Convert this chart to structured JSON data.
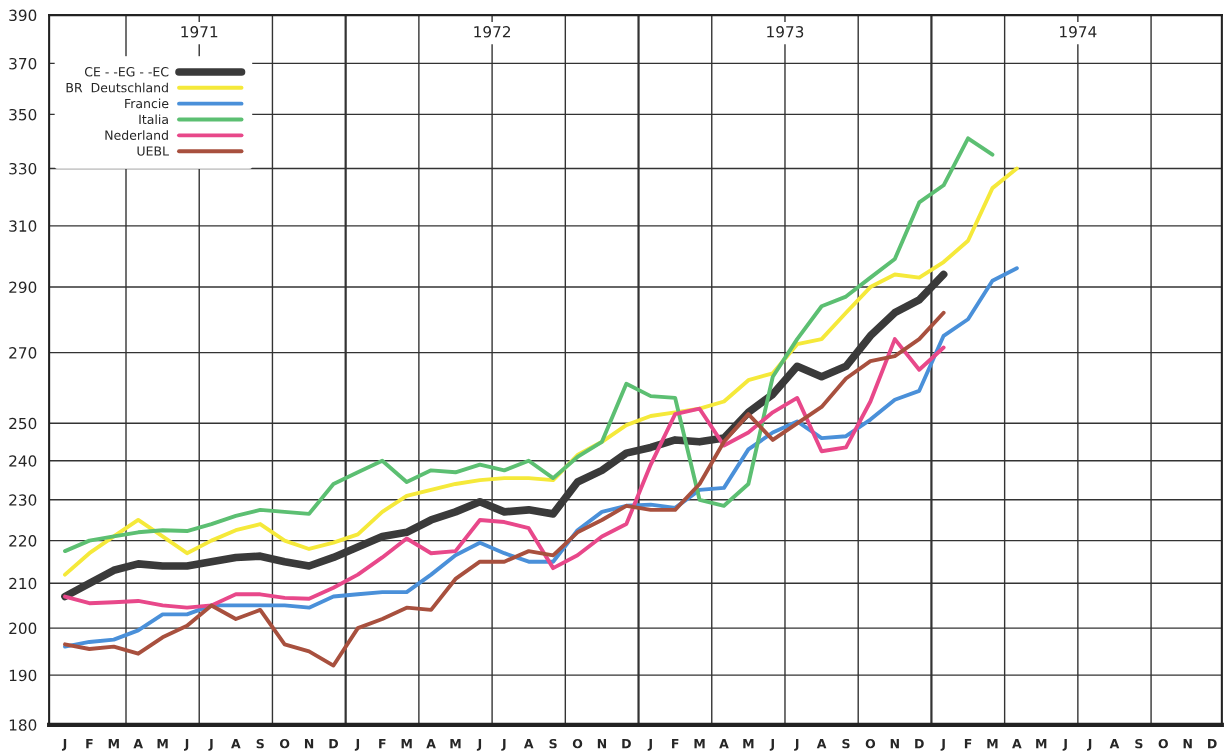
{
  "chart_data": {
    "type": "line",
    "categories": [
      "J",
      "F",
      "M",
      "A",
      "M",
      "J",
      "J",
      "A",
      "S",
      "O",
      "N",
      "D",
      "J",
      "F",
      "M",
      "A",
      "M",
      "J",
      "J",
      "A",
      "S",
      "O",
      "N",
      "D",
      "J",
      "F",
      "M",
      "A",
      "M",
      "J",
      "J",
      "A",
      "S",
      "O",
      "N",
      "D",
      "J",
      "F",
      "M",
      "A",
      "M",
      "J",
      "J",
      "A",
      "S",
      "O",
      "N",
      "D"
    ],
    "series": [
      {
        "name": "CE - -EG - -EC",
        "color": "#3a3a3a",
        "values": [
          207,
          210,
          213,
          214.5,
          214,
          214,
          215,
          216,
          216.3,
          215,
          214,
          216,
          218.5,
          221,
          222,
          225,
          227,
          229.5,
          227,
          227.5,
          226.5,
          234.5,
          237.5,
          242,
          243.5,
          245.5,
          245,
          246,
          253,
          258,
          266,
          263,
          266,
          275,
          282,
          286,
          294,
          null,
          null,
          null,
          null,
          null,
          null,
          null,
          null,
          null,
          null,
          null
        ]
      },
      {
        "name": "BR  Deutschland",
        "color": "#f5e93a",
        "values": [
          212,
          217,
          221,
          225,
          221,
          217,
          220,
          222.5,
          224,
          220,
          218,
          219.5,
          221.5,
          227,
          231,
          232.5,
          234,
          235,
          235.5,
          235.5,
          235,
          241.5,
          245,
          249.5,
          252,
          253,
          254,
          256,
          262,
          264,
          272.5,
          274,
          282,
          290,
          294,
          293,
          298,
          305,
          323,
          330,
          null,
          null,
          null,
          null,
          null,
          null,
          null,
          null
        ]
      },
      {
        "name": "Francie",
        "color": "#4a90d9",
        "values": [
          196,
          197,
          197.5,
          199.5,
          203,
          203,
          205,
          205,
          205,
          205,
          204.5,
          207,
          207.5,
          208,
          208,
          212,
          216.5,
          219.5,
          217,
          215,
          215,
          222.5,
          227,
          228.5,
          228.8,
          228,
          232.5,
          233,
          243,
          247.5,
          250.5,
          246,
          246.5,
          251,
          256.5,
          259,
          275,
          280,
          292,
          296,
          null,
          null,
          null,
          null,
          null,
          null,
          null,
          null
        ]
      },
      {
        "name": "Italia",
        "color": "#5cbf72",
        "values": [
          217.5,
          220,
          221,
          222,
          222.5,
          222.3,
          224,
          226,
          227.5,
          227,
          226.5,
          234,
          237,
          240,
          234.5,
          237.5,
          237,
          239,
          237.5,
          240,
          235.5,
          241,
          245,
          261,
          257.5,
          257,
          230,
          228.5,
          234,
          263,
          274,
          284,
          287,
          293,
          299,
          318,
          324,
          341,
          335,
          null,
          null,
          null,
          null,
          null,
          null,
          null,
          null,
          null
        ]
      },
      {
        "name": "Nederland",
        "color": "#e8488a",
        "values": [
          207,
          205.5,
          205.7,
          206,
          205,
          204.5,
          205,
          207.5,
          207.5,
          206.7,
          206.5,
          209,
          212,
          216,
          220.5,
          217,
          217.5,
          225,
          224.5,
          223,
          213.5,
          216.5,
          221,
          224,
          239,
          252.5,
          254,
          244,
          247.5,
          253,
          257,
          242.5,
          243.5,
          256,
          274,
          265,
          271.5,
          null,
          null,
          null,
          null,
          null,
          null,
          null,
          null,
          null,
          null,
          null
        ]
      },
      {
        "name": "UEBL",
        "color": "#a8503e",
        "values": [
          196.5,
          195.5,
          196,
          194.5,
          198,
          200.5,
          205,
          202,
          204,
          196.5,
          195,
          192,
          200,
          202,
          204.5,
          204,
          211,
          215,
          215,
          217.5,
          216.5,
          222,
          225,
          228.5,
          227.5,
          227.5,
          234,
          245,
          252.5,
          245.5,
          250,
          254.5,
          262.5,
          267.5,
          269,
          274,
          282,
          null,
          null,
          null,
          null,
          null,
          null,
          null,
          null,
          null,
          null,
          null
        ]
      }
    ],
    "annotations": [
      "1971",
      "1972",
      "1973",
      "1974"
    ],
    "log": "y",
    "ylim": [
      180,
      390
    ],
    "yticks": [
      180,
      190,
      200,
      210,
      220,
      230,
      240,
      250,
      270,
      290,
      310,
      330,
      350,
      370,
      390
    ],
    "grid": true,
    "legend": "top left",
    "marker": "none",
    "line_style": "solid"
  }
}
